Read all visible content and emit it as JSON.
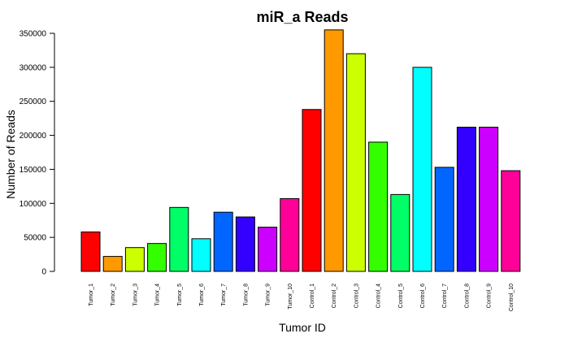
{
  "chart_data": {
    "type": "bar",
    "title": "miR_a Reads",
    "xlabel": "Tumor ID",
    "ylabel": "Number of Reads",
    "ylim": [
      0,
      350000
    ],
    "yticks": [
      0,
      50000,
      100000,
      150000,
      200000,
      250000,
      300000,
      350000
    ],
    "grid": false,
    "categories": [
      "Tumor_1",
      "Tumor_2",
      "Tumor_3",
      "Tumor_4",
      "Tumor_5",
      "Tumor_6",
      "Tumor_7",
      "Tumor_8",
      "Tumor_9",
      "Tumor_10",
      "Control_1",
      "Control_2",
      "Control_3",
      "Control_4",
      "Control_5",
      "Control_6",
      "Control_7",
      "Control_8",
      "Control_9",
      "Control_10"
    ],
    "values": [
      58000,
      22000,
      35000,
      41000,
      94000,
      48000,
      87000,
      80000,
      65000,
      107000,
      238000,
      355000,
      320000,
      190000,
      113000,
      300000,
      153000,
      212000,
      212000,
      148000
    ],
    "colors": [
      "#FF0000",
      "#FF9900",
      "#CCFF00",
      "#33FF00",
      "#00FF66",
      "#00FFFF",
      "#0066FF",
      "#3300FF",
      "#CC00FF",
      "#FF0099",
      "#FF0000",
      "#FF9900",
      "#CCFF00",
      "#33FF00",
      "#00FF66",
      "#00FFFF",
      "#0066FF",
      "#3300FF",
      "#CC00FF",
      "#FF0099"
    ]
  }
}
